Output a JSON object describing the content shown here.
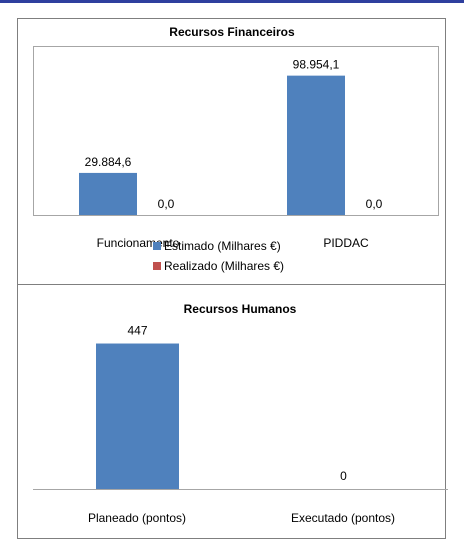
{
  "chart_data": [
    {
      "type": "bar",
      "title": "Recursos Financeiros",
      "categories": [
        "Funcionamento",
        "PIDDAC"
      ],
      "series": [
        {
          "name": "Estimado (Milhares €)",
          "values": [
            29884.6,
            98954.1
          ],
          "labels": [
            "29.884,6",
            "98.954,1"
          ]
        },
        {
          "name": "Realizado (Milhares €)",
          "values": [
            0,
            0
          ],
          "labels": [
            "0,0",
            "0,0"
          ]
        }
      ],
      "ylim": [
        0,
        120000
      ],
      "grid": false,
      "legend": "bottom",
      "colors": [
        "#4f81bd",
        "#c0504d"
      ]
    },
    {
      "type": "bar",
      "title": "Recursos Humanos",
      "categories": [
        "Planeado (pontos)",
        "Executado (pontos)"
      ],
      "values": [
        447,
        0
      ],
      "labels": [
        "447",
        "0"
      ],
      "ylim": [
        0,
        550
      ],
      "grid": false,
      "colors": [
        "#4f81bd"
      ]
    }
  ]
}
